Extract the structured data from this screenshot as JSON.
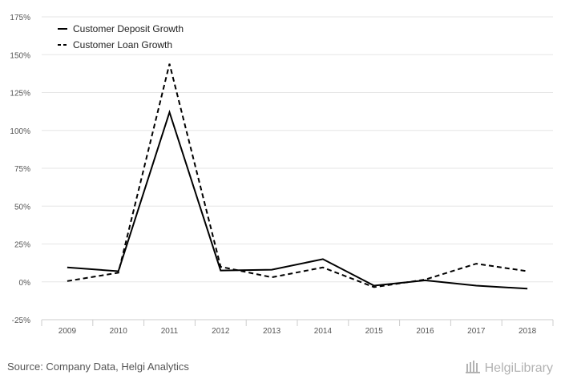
{
  "chart_data": {
    "type": "line",
    "title": "",
    "xlabel": "",
    "ylabel": "",
    "categories": [
      "2009",
      "2010",
      "2011",
      "2012",
      "2013",
      "2014",
      "2015",
      "2016",
      "2017",
      "2018"
    ],
    "ylim": [
      -25,
      175
    ],
    "yticks": [
      -25,
      0,
      25,
      50,
      75,
      100,
      125,
      150,
      175
    ],
    "ytick_labels": [
      "-25%",
      "0%",
      "25%",
      "50%",
      "75%",
      "100%",
      "125%",
      "150%",
      "175%"
    ],
    "grid": true,
    "legend_position": "top-left",
    "series": [
      {
        "name": "Customer Deposit Growth",
        "style": "solid",
        "values": [
          9.5,
          7,
          112,
          7.5,
          8,
          15,
          -2.5,
          1,
          -2.5,
          -4.5
        ]
      },
      {
        "name": "Customer Loan Growth",
        "style": "dashed",
        "values": [
          0.5,
          6,
          144,
          10,
          3,
          9.5,
          -3.5,
          1.5,
          12,
          7
        ]
      }
    ],
    "colors": {
      "line": "#000000",
      "grid": "#e6e6e6",
      "axis": "#cccccc"
    }
  },
  "footer": {
    "source": "Source: Company Data, Helgi Analytics",
    "brand": "HelgiLibrary"
  }
}
